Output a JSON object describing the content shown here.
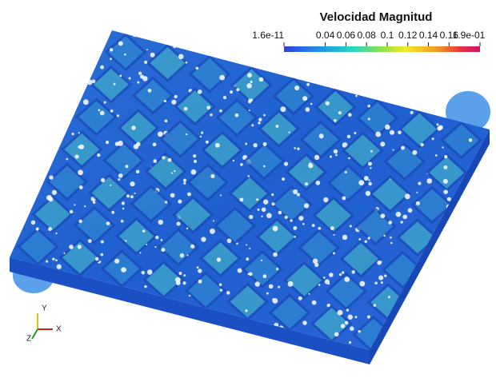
{
  "colorbar": {
    "title": "Velocidad Magnitud",
    "range": [
      {
        "value": 1.6e-11,
        "label": "1.6e-11"
      },
      {
        "value": 0.19,
        "label": "1.9e-01"
      }
    ],
    "ticks": [
      0.04,
      0.06,
      0.08,
      0.1,
      0.12,
      0.14,
      0.16
    ]
  },
  "axes_glyph": {
    "labels": [
      "Y",
      "X",
      "Z"
    ]
  }
}
